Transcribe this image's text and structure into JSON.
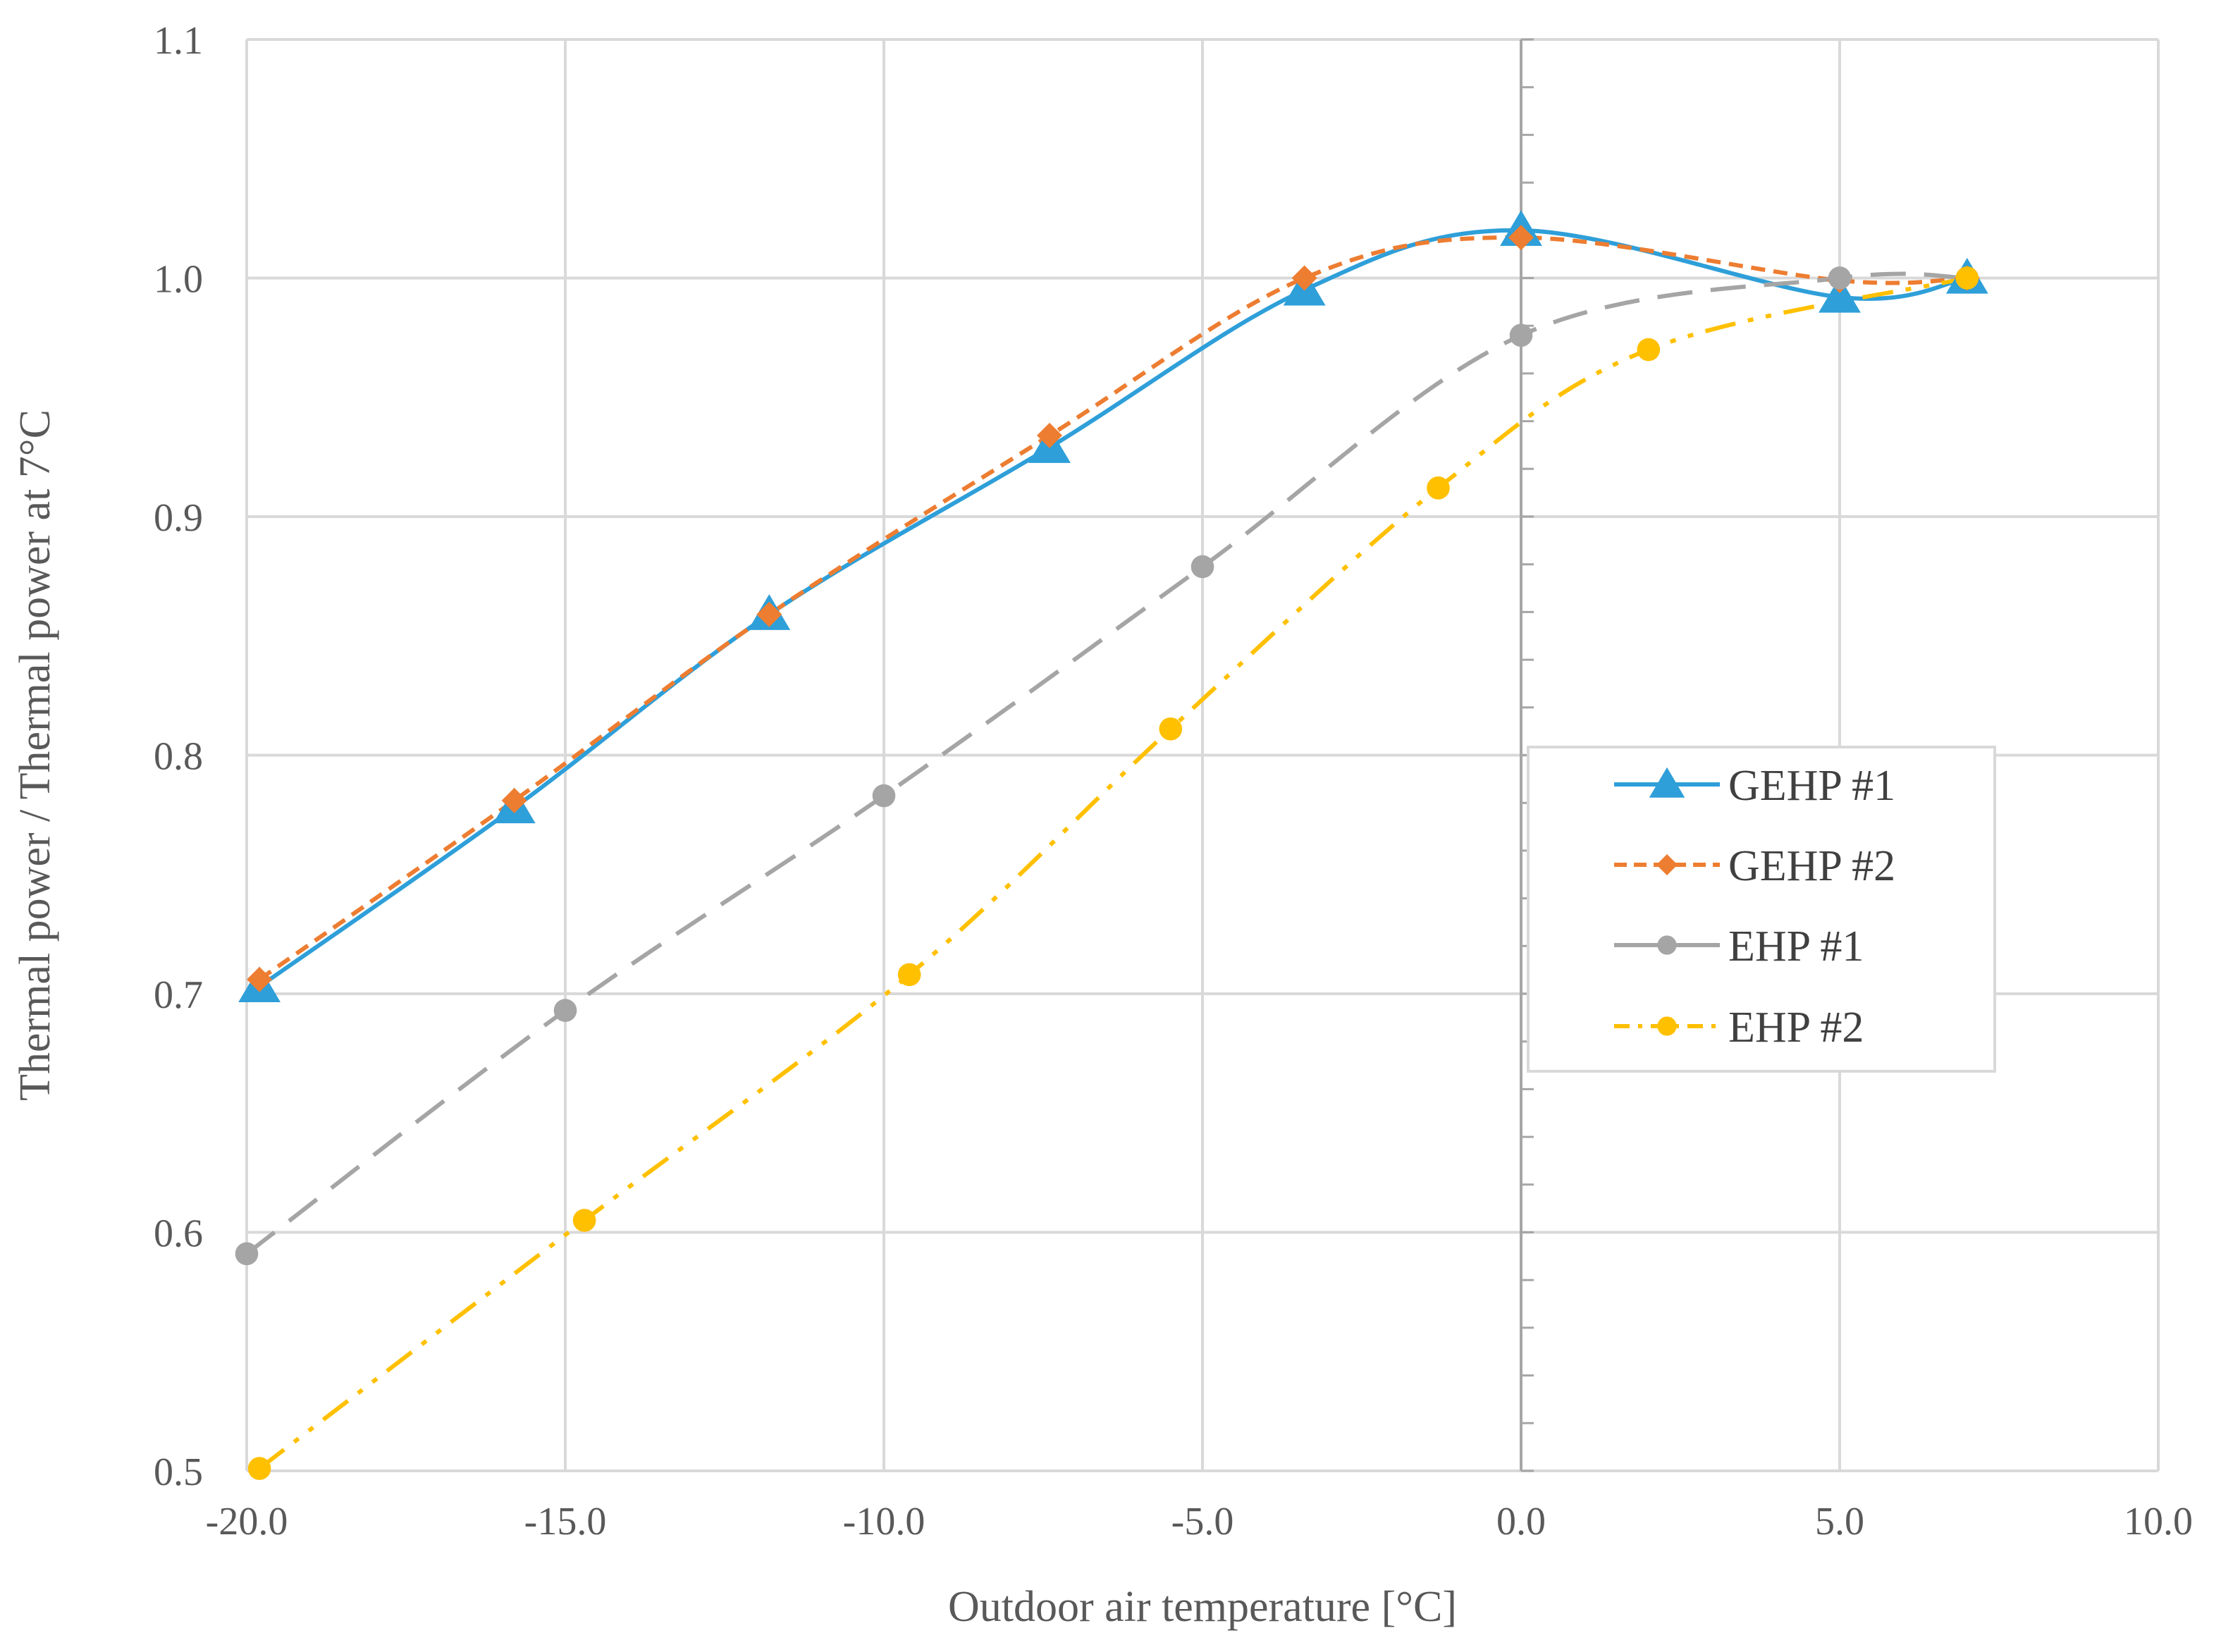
{
  "chart_data": {
    "type": "line",
    "title": "",
    "xlabel": "Outdoor air temperature [°C]",
    "ylabel": "Thermal power / Thermal power at 7°C",
    "xlim": [
      -20,
      10
    ],
    "ylim": [
      0.5,
      1.1
    ],
    "x_ticks": [
      -20,
      -15,
      -10,
      -5,
      0,
      5,
      10
    ],
    "x_tick_labels": [
      "-20.0",
      "-15.0",
      "-10.0",
      "-5.0",
      "0.0",
      "5.0",
      "10.0"
    ],
    "y_ticks": [
      0.5,
      0.6,
      0.7,
      0.8,
      0.9,
      1.0,
      1.1
    ],
    "y_tick_labels": [
      "0.5",
      "0.6",
      "0.7",
      "0.8",
      "0.9",
      "1.0",
      "1.1"
    ],
    "grid": true,
    "legend_position": "center-right",
    "series": [
      {
        "name": "GEHP #1",
        "color": "#2e9fd9",
        "marker": "triangle",
        "line_style": "solid",
        "x": [
          -19.8,
          -15.8,
          -11.8,
          -7.4,
          -3.4,
          0.0,
          5.0,
          7.0
        ],
        "y": [
          0.703,
          0.778,
          0.859,
          0.929,
          0.995,
          1.02,
          0.992,
          1.0
        ]
      },
      {
        "name": "GEHP #2",
        "color": "#ed7d31",
        "marker": "diamond",
        "line_style": "short-dash",
        "x": [
          -19.8,
          -15.8,
          -11.8,
          -7.4,
          -3.4,
          0.0,
          5.0,
          7.0
        ],
        "y": [
          0.706,
          0.781,
          0.859,
          0.934,
          1.0,
          1.017,
          0.999,
          1.0
        ]
      },
      {
        "name": "EHP #1",
        "color": "#a5a5a5",
        "marker": "circle",
        "line_style": "long-dash",
        "x": [
          -20.0,
          -15.0,
          -10.0,
          -5.0,
          0.0,
          5.0,
          7.0
        ],
        "y": [
          0.591,
          0.693,
          0.783,
          0.879,
          0.976,
          1.0,
          1.0
        ]
      },
      {
        "name": "EHP #2",
        "color": "#ffc000",
        "marker": "circle",
        "line_style": "dash-dot-dot",
        "x": [
          -19.8,
          -14.7,
          -9.6,
          -5.5,
          -1.3,
          2.0,
          7.0
        ],
        "y": [
          0.501,
          0.605,
          0.708,
          0.811,
          0.912,
          0.97,
          1.0
        ]
      }
    ]
  }
}
